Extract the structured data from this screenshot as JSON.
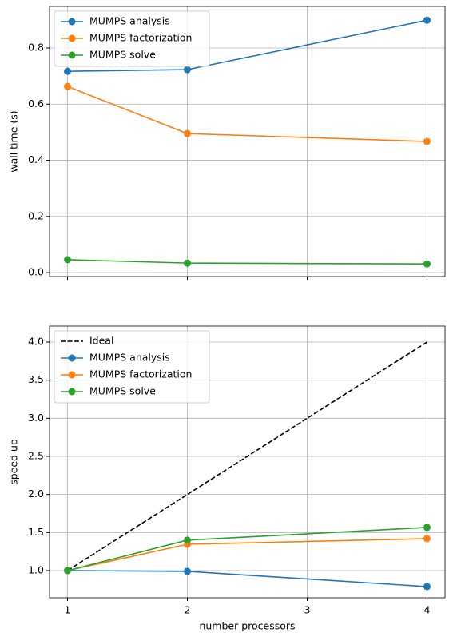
{
  "chart_data": [
    {
      "type": "line",
      "ylabel": "wall time (s)",
      "x": [
        1,
        2,
        4
      ],
      "series": [
        {
          "name": "MUMPS analysis",
          "color": "#1f77b4",
          "marker": "o",
          "linestyle": "-",
          "values": [
            0.717,
            0.723,
            0.899
          ]
        },
        {
          "name": "MUMPS factorization",
          "color": "#ff7f0e",
          "marker": "o",
          "linestyle": "-",
          "values": [
            0.663,
            0.495,
            0.467
          ]
        },
        {
          "name": "MUMPS solve",
          "color": "#2ca02c",
          "marker": "o",
          "linestyle": "-",
          "values": [
            0.046,
            0.034,
            0.031
          ]
        }
      ],
      "xlim": [
        0.85,
        4.15
      ],
      "xticks": [
        1,
        2,
        3,
        4
      ],
      "show_xtick_labels": false,
      "ylim": [
        -0.014,
        0.948
      ],
      "yticks": [
        {
          "value": 0,
          "label": "0.0"
        },
        0.2,
        0.4,
        0.6,
        0.8
      ],
      "grid": true,
      "legend": "upper left"
    },
    {
      "type": "line",
      "ylabel": "speed up",
      "xlabel": "number processors",
      "x": [
        1,
        2,
        4
      ],
      "series": [
        {
          "name": "Ideal",
          "color": "#000000",
          "marker": "none",
          "linestyle": "--",
          "values": [
            1,
            2,
            4
          ]
        },
        {
          "name": "MUMPS analysis",
          "color": "#1f77b4",
          "marker": "o",
          "linestyle": "-",
          "values": [
            1,
            0.99,
            0.79
          ]
        },
        {
          "name": "MUMPS factorization",
          "color": "#ff7f0e",
          "marker": "o",
          "linestyle": "-",
          "values": [
            1,
            1.346,
            1.42
          ]
        },
        {
          "name": "MUMPS solve",
          "color": "#2ca02c",
          "marker": "o",
          "linestyle": "-",
          "values": [
            1,
            1.4,
            1.567
          ]
        }
      ],
      "xlim": [
        0.85,
        4.15
      ],
      "xticks": [
        1,
        2,
        3,
        4
      ],
      "show_xtick_labels": true,
      "ylim": [
        0.643,
        4.21
      ],
      "yticks": [
        {
          "value": 1,
          "label": "1.0"
        },
        1.5,
        {
          "value": 2,
          "label": "2.0"
        },
        2.5,
        {
          "value": 3,
          "label": "3.0"
        },
        3.5,
        {
          "value": 4,
          "label": "4.0"
        }
      ],
      "grid": true,
      "legend": "upper left"
    }
  ]
}
